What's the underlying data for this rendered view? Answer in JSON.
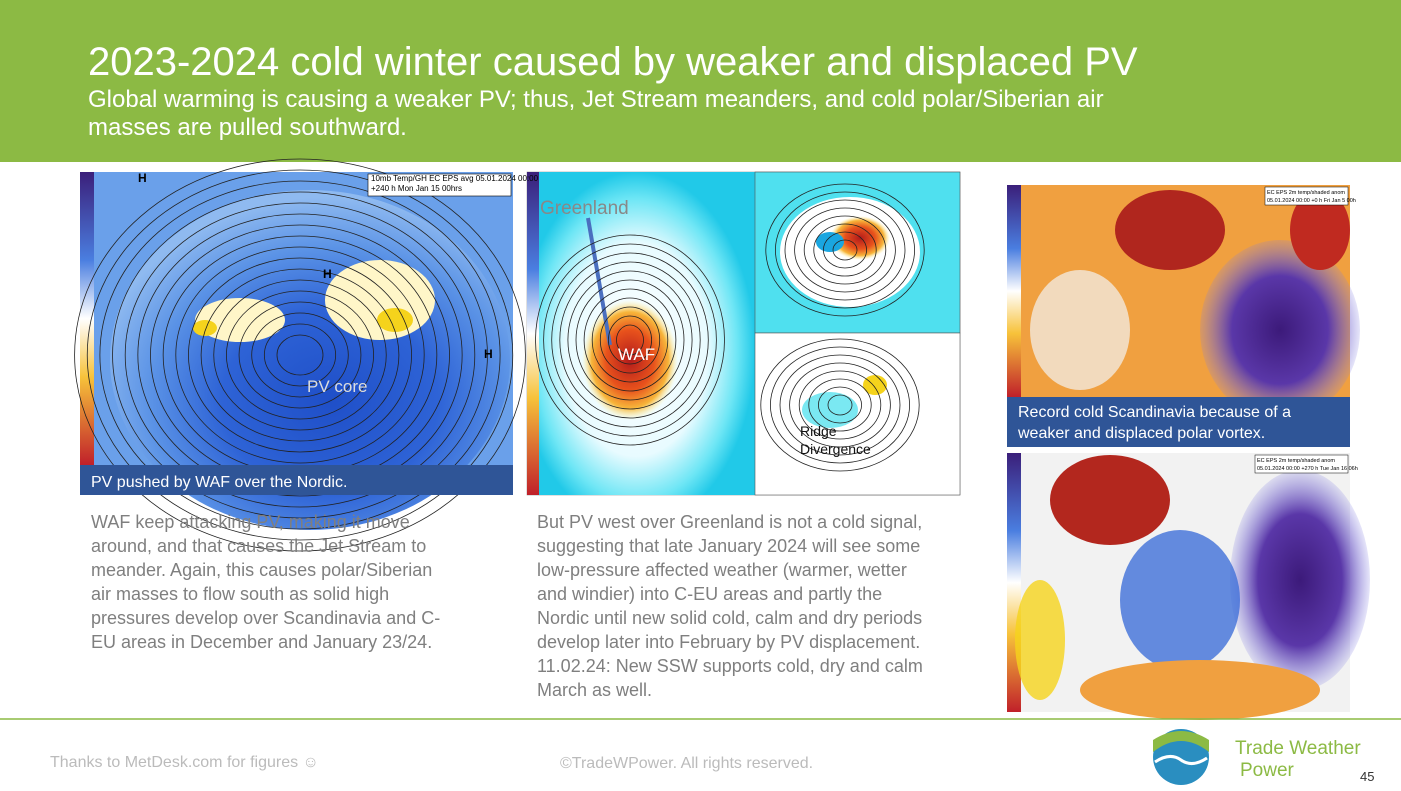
{
  "header": {
    "title": "2023-2024 cold winter caused by weaker and displaced PV",
    "subtitle": [
      "Global warming is causing a weaker PV; thus, Jet Stream meanders, and cold polar/Siberian air",
      "masses are pulled southward."
    ]
  },
  "figures": [
    {
      "header": [
        "10mb Temp/GH EC EPS avg 05.01.2024 00:00",
        "+240 h Mon Jan 15 00hrs"
      ],
      "labels": [
        "H",
        "H",
        "H",
        "PV core"
      ],
      "caption": [
        "PV pushed by WAF over the Nordic."
      ]
    },
    {
      "labels": [
        "Greenland",
        "WAF",
        "Ridge",
        "Divergence"
      ]
    },
    {
      "header": [
        "EC EPS 2m temp/shaded anom",
        "05.01.2024 00:00 +0 h Fri Jan 5 00h"
      ],
      "caption": [
        "Record cold Scandinavia because of a",
        "weaker and displaced polar vortex."
      ]
    },
    {
      "header": [
        "EC EPS 2m temp/shaded anom",
        "05.01.2024 00:00 +270 h Tue Jan 16 06h"
      ]
    }
  ],
  "text_left": [
    "WAF keep attacking PV, making it move",
    "around, and that causes the Jet Stream to",
    "meander. Again, this causes polar/Siberian",
    "air masses to flow south as solid high",
    "pressures develop over Scandinavia and C-",
    "EU areas in December and January 23/24."
  ],
  "text_middle": [
    "But PV west over Greenland is not a cold signal,",
    "suggesting that late January 2024 will see some",
    "low-pressure affected weather (warmer, wetter",
    "and windier) into C-EU areas and partly the",
    "Nordic until new solid cold, calm and dry periods",
    "develop later into February by PV displacement.",
    "11.02.24: New SSW supports cold, dry and calm",
    "March as well."
  ],
  "footer": {
    "credit": "Thanks to MetDesk.com for figures ☺",
    "copyright": "©TradeWPower. All rights reserved.",
    "logo": [
      "Trade Weather",
      "Power"
    ],
    "page": "45"
  }
}
